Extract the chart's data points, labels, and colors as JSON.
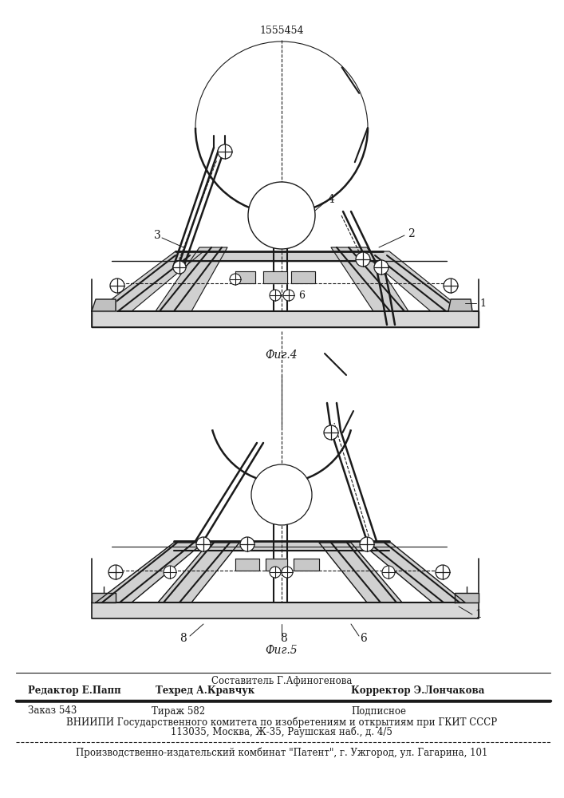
{
  "patent_number": "1555454",
  "fig4_label": "Фиг.4",
  "fig5_label": "Фиг.5",
  "footer_sestavitel": "Составитель Г.Афиногенова",
  "footer_redaktor": "Редактор Е.Папп",
  "footer_tehred": "Техред А.Кравчук",
  "footer_korrektor": "Корректор Э.Лончакова",
  "footer_zakaz": "Заказ 543",
  "footer_tirazh": "Тираж 582",
  "footer_podpisnoe": "Подписное",
  "footer_vniipii": "ВНИИПИ Государственного комитета по изобретениям и открытиям при ГКИТ СССР",
  "footer_address": "113035, Москва, Ж-35, Раушская наб., д. 4/5",
  "footer_proizv": "Производственно-издательский комбинат \"Патент\", г. Ужгород, ул. Гагарина, 101",
  "bg_color": "#ffffff",
  "line_color": "#1a1a1a"
}
